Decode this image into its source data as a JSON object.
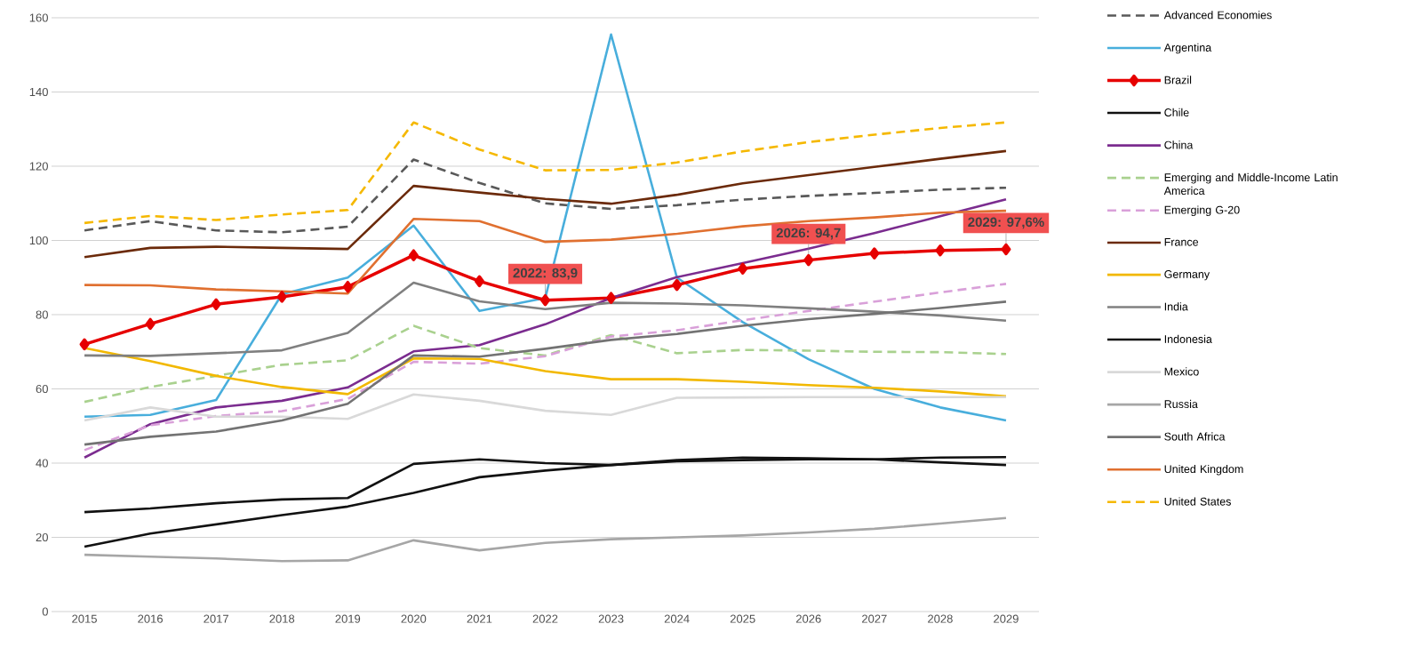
{
  "chart_data": {
    "type": "line",
    "x": [
      2015,
      2016,
      2017,
      2018,
      2019,
      2020,
      2021,
      2022,
      2023,
      2024,
      2025,
      2026,
      2027,
      2028,
      2029
    ],
    "xlim": [
      2014.5,
      2029.5
    ],
    "xticks": [
      2015,
      2016,
      2017,
      2018,
      2019,
      2020,
      2021,
      2022,
      2023,
      2024,
      2025,
      2026,
      2027,
      2028,
      2029
    ],
    "ylim": [
      0,
      160
    ],
    "yticks": [
      0,
      20,
      40,
      60,
      80,
      100,
      120,
      140,
      160
    ],
    "grid": "y",
    "legend": "right",
    "series": [
      {
        "name": "Advanced Economies",
        "color": "#595959",
        "line_style": "dashed",
        "values": [
          102.7,
          105.2,
          102.7,
          102.2,
          103.7,
          121.8,
          115.5,
          110,
          108.5,
          109.5,
          111,
          112,
          112.8,
          113.7,
          114.2
        ]
      },
      {
        "name": "Argentina",
        "color": "#48aedc",
        "values": [
          52.5,
          53,
          57,
          85.5,
          90,
          104,
          81,
          84.5,
          155.5,
          90,
          78,
          68,
          60,
          55,
          51.5
        ]
      },
      {
        "name": "Brazil",
        "color": "#e60000",
        "marker": "diamond",
        "values": [
          72,
          77.5,
          82.8,
          84.8,
          87.5,
          96,
          89,
          83.9,
          84.5,
          88,
          92.4,
          94.7,
          96.5,
          97.3,
          97.6
        ]
      },
      {
        "name": "Chile",
        "color": "#111111",
        "values": [
          17.5,
          21,
          23.5,
          26,
          28.3,
          32,
          36.2,
          38,
          39.5,
          40.5,
          40.8,
          41,
          41,
          41.5,
          41.6
        ]
      },
      {
        "name": "China",
        "color": "#7b2c8f",
        "values": [
          41.5,
          50.5,
          55,
          56.8,
          60.4,
          70.1,
          71.8,
          77.4,
          84.5,
          90.1,
          93.9,
          97.8,
          102,
          106.5,
          111.1
        ]
      },
      {
        "name": "Emerging and Middle-Income Latin America",
        "color": "#a9d18e",
        "line_style": "dashed",
        "values": [
          56.5,
          60.5,
          63.5,
          66.5,
          67.7,
          77,
          71,
          69,
          74.5,
          69.6,
          70.5,
          70.3,
          70,
          69.9,
          69.4
        ]
      },
      {
        "name": "Emerging G-20",
        "color": "#d9a0d9",
        "line_style": "dashed",
        "values": [
          43.5,
          50.2,
          52.7,
          54,
          57.3,
          67.3,
          66.8,
          68.8,
          74.1,
          75.8,
          78.5,
          81,
          83.5,
          86,
          88.3
        ]
      },
      {
        "name": "France",
        "color": "#6b2a0a",
        "values": [
          95.5,
          98,
          98.3,
          98,
          97.7,
          114.7,
          112.9,
          111.2,
          109.9,
          112.3,
          115.4,
          117.6,
          119.8,
          122,
          124.1
        ]
      },
      {
        "name": "Germany",
        "color": "#f2b800",
        "values": [
          71,
          67.5,
          63.5,
          60.5,
          58.6,
          68.2,
          68.1,
          64.8,
          62.6,
          62.6,
          61.9,
          61,
          60.3,
          59.3,
          58
        ]
      },
      {
        "name": "India",
        "color": "#808080",
        "values": [
          69,
          68.9,
          69.6,
          70.4,
          75.1,
          88.6,
          83.6,
          81.5,
          83.2,
          83,
          82.5,
          81.7,
          80.8,
          79.8,
          78.4
        ]
      },
      {
        "name": "Indonesia",
        "color": "#111111",
        "values": [
          26.8,
          27.8,
          29.2,
          30.2,
          30.6,
          39.8,
          41,
          40,
          39.5,
          40.8,
          41.5,
          41.3,
          41,
          40.2,
          39.5
        ]
      },
      {
        "name": "Mexico",
        "color": "#d9d9d9",
        "values": [
          51.5,
          55,
          52.5,
          52.5,
          51.9,
          58.5,
          56.8,
          54.1,
          53,
          57.6,
          57.7,
          57.8,
          57.8,
          57.8,
          57.8
        ]
      },
      {
        "name": "Russia",
        "color": "#a6a6a6",
        "values": [
          15.3,
          14.8,
          14.3,
          13.6,
          13.8,
          19.2,
          16.5,
          18.5,
          19.5,
          20,
          20.5,
          21.3,
          22.3,
          23.7,
          25.2
        ]
      },
      {
        "name": "South Africa",
        "color": "#737373",
        "values": [
          45,
          47.1,
          48.5,
          51.5,
          56,
          69,
          68.7,
          70.8,
          73.2,
          74.8,
          77,
          78.8,
          80.2,
          81.8,
          83.5
        ]
      },
      {
        "name": "United Kingdom",
        "color": "#e07030",
        "values": [
          88,
          87.9,
          86.8,
          86.3,
          85.7,
          105.8,
          105.2,
          99.6,
          100.2,
          101.8,
          103.8,
          105.2,
          106.2,
          107.5,
          108
        ]
      },
      {
        "name": "United States",
        "color": "#f5b800",
        "line_style": "dashed",
        "values": [
          104.7,
          106.6,
          105.5,
          107,
          108.2,
          131.8,
          124.5,
          118.9,
          119,
          121,
          124,
          126.5,
          128.5,
          130.3,
          131.8
        ]
      }
    ],
    "annotations": [
      {
        "text": "2022: 83,9",
        "x": 2022,
        "y": 83.9
      },
      {
        "text": "2026: 94,7",
        "x": 2026,
        "y": 94.7
      },
      {
        "text": "2029: 97,6%",
        "x": 2029,
        "y": 97.6
      }
    ]
  }
}
